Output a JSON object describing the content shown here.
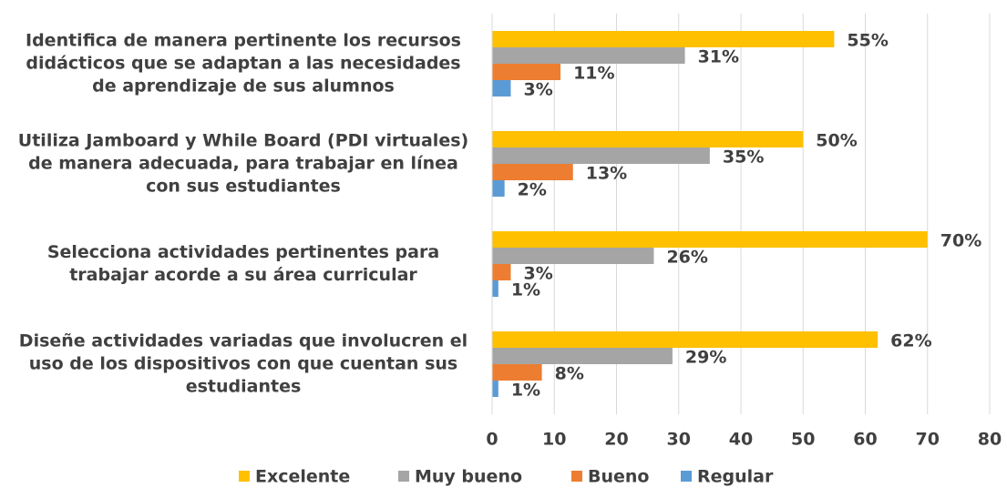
{
  "chart_data": {
    "type": "bar",
    "orientation": "horizontal",
    "categories": [
      "Identifica de manera pertinente los recursos didácticos que se adaptan a las necesidades de aprendizaje de sus alumnos",
      "Utiliza Jamboard y While Board (PDI virtuales) de manera adecuada, para trabajar en línea con sus estudiantes",
      "Selecciona actividades pertinentes para trabajar acorde a su área curricular",
      "Diseñe actividades variadas que involucren el uso de los dispositivos con que cuentan sus estudiantes"
    ],
    "series": [
      {
        "name": "Excelente",
        "color": "#FFC000",
        "values": [
          55,
          50,
          70,
          62
        ],
        "value_labels": [
          "55%",
          "50%",
          "70%",
          "62%"
        ]
      },
      {
        "name": "Muy bueno",
        "color": "#A5A5A5",
        "values": [
          31,
          35,
          26,
          29
        ],
        "value_labels": [
          "31%",
          "35%",
          "26%",
          "29%"
        ]
      },
      {
        "name": "Bueno",
        "color": "#ED7D31",
        "values": [
          11,
          13,
          3,
          8
        ],
        "value_labels": [
          "11%",
          "13%",
          "3%",
          "8%"
        ]
      },
      {
        "name": "Regular",
        "color": "#5B9BD5",
        "values": [
          3,
          2,
          1,
          1
        ],
        "value_labels": [
          "3%",
          "2%",
          "1%",
          "1%"
        ]
      }
    ],
    "xlim": [
      0,
      80
    ],
    "xticks": [
      0,
      10,
      20,
      30,
      40,
      50,
      60,
      70,
      80
    ],
    "grid": true,
    "legend": "bottom"
  }
}
